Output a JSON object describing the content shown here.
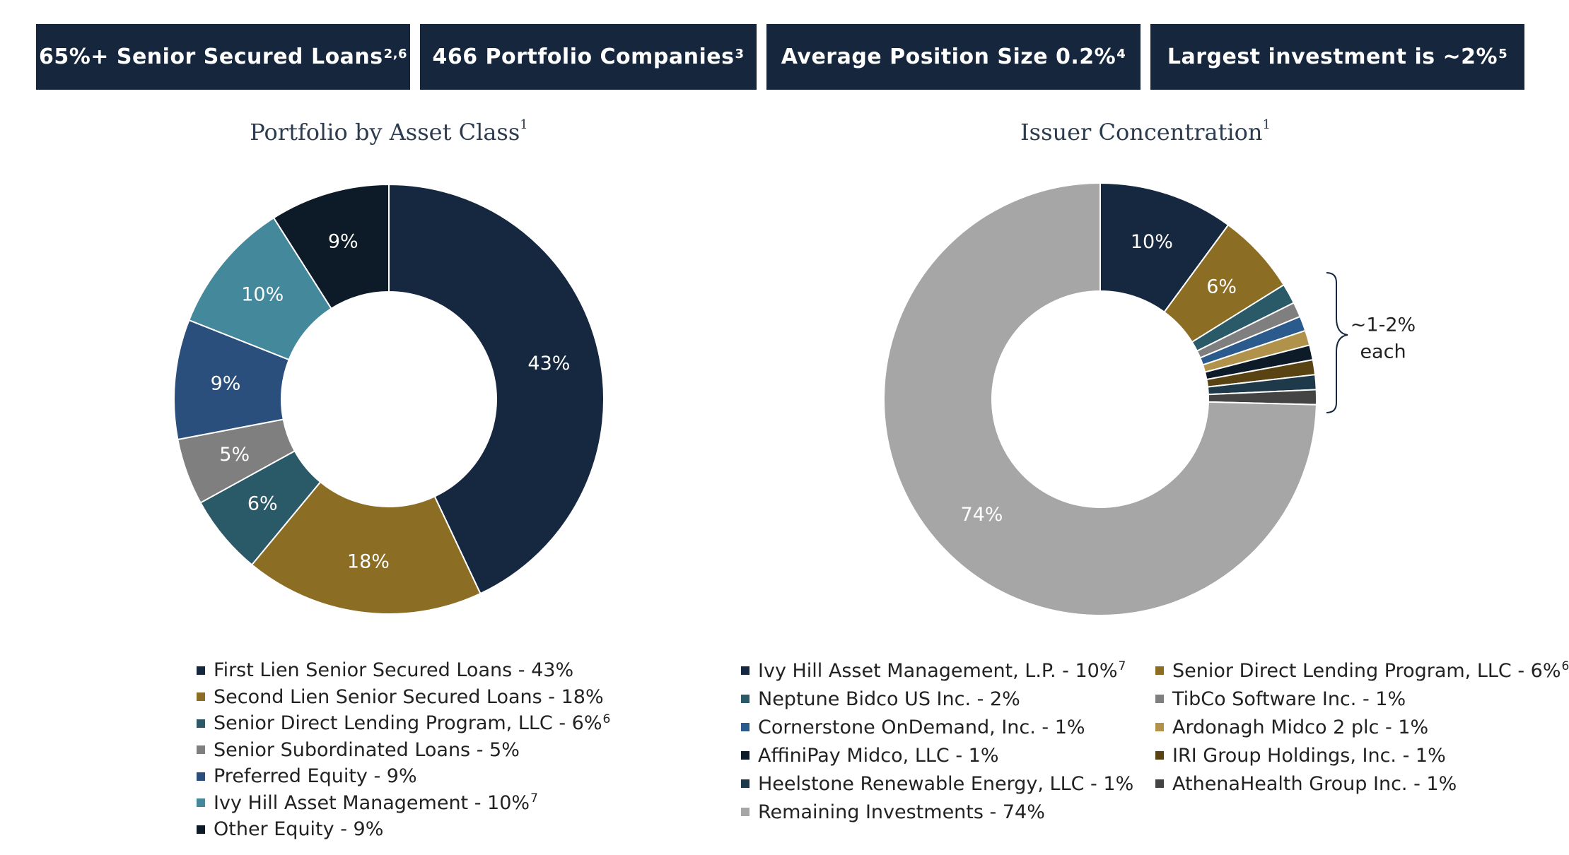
{
  "stats": [
    {
      "text": "65%+ Senior Secured Loans",
      "sup": "2,6"
    },
    {
      "text": "466 Portfolio Companies",
      "sup": "3"
    },
    {
      "text": "Average Position Size 0.2%",
      "sup": "4"
    },
    {
      "text": "Largest investment is ~2%",
      "sup": "5"
    }
  ],
  "brace_label_line1": "~1-2%",
  "brace_label_line2": "each",
  "chart_data": [
    {
      "type": "pie",
      "title": "Portfolio by Asset Class",
      "title_sup": "1",
      "slices": [
        {
          "name": "First Lien Senior Secured Loans",
          "value": 43,
          "label": "43%",
          "color": "#15283f",
          "legend": "First Lien Senior Secured Loans - 43%",
          "sup": ""
        },
        {
          "name": "Second Lien Senior Secured Loans",
          "value": 18,
          "label": "18%",
          "color": "#8c6d24",
          "legend": "Second Lien Senior Secured Loans - 18%",
          "sup": ""
        },
        {
          "name": "Senior Direct Lending Program, LLC",
          "value": 6,
          "label": "6%",
          "color": "#2a5a68",
          "legend": "Senior Direct Lending Program, LLC - 6%",
          "sup": "6"
        },
        {
          "name": "Senior Subordinated Loans",
          "value": 5,
          "label": "5%",
          "color": "#7f7f7f",
          "legend": "Senior Subordinated Loans - 5%",
          "sup": ""
        },
        {
          "name": "Preferred Equity",
          "value": 9,
          "label": "9%",
          "color": "#2b4f7c",
          "legend": "Preferred Equity - 9%",
          "sup": ""
        },
        {
          "name": "Ivy Hill Asset Management",
          "value": 10,
          "label": "10%",
          "color": "#43889b",
          "legend": "Ivy Hill Asset Management - 10%",
          "sup": "7"
        },
        {
          "name": "Other Equity",
          "value": 9,
          "label": "9%",
          "color": "#0d1a27",
          "legend": "Other Equity - 9%",
          "sup": ""
        }
      ]
    },
    {
      "type": "pie",
      "title": "Issuer Concentration",
      "title_sup": "1",
      "slices": [
        {
          "name": "Ivy Hill Asset Management, L.P.",
          "value": 10,
          "label": "10%",
          "color": "#15283f",
          "legend": "Ivy Hill Asset Management, L.P. - 10%",
          "sup": "7"
        },
        {
          "name": "Senior Direct Lending Program, LLC",
          "value": 6,
          "label": "6%",
          "color": "#8c6d24",
          "legend": "Senior Direct Lending Program, LLC - 6%",
          "sup": "6"
        },
        {
          "name": "Neptune Bidco US Inc.",
          "value": 1.5,
          "label": "",
          "color": "#2a5a68",
          "legend": "Neptune Bidco US Inc.  - 2%",
          "sup": ""
        },
        {
          "name": "TibCo Software Inc.",
          "value": 1.1,
          "label": "",
          "color": "#7f7f7f",
          "legend": "TibCo Software Inc. - 1%",
          "sup": ""
        },
        {
          "name": "Cornerstone OnDemand, Inc.",
          "value": 1.1,
          "label": "",
          "color": "#2b5a8c",
          "legend": "Cornerstone OnDemand, Inc. - 1%",
          "sup": ""
        },
        {
          "name": "Ardonagh Midco 2 plc",
          "value": 1.1,
          "label": "",
          "color": "#b0924a",
          "legend": "Ardonagh Midco 2 plc - 1%",
          "sup": ""
        },
        {
          "name": "AffiniPay Midco, LLC",
          "value": 1.1,
          "label": "",
          "color": "#0d1a27",
          "legend": "AffiniPay Midco, LLC  - 1%",
          "sup": ""
        },
        {
          "name": "IRI Group Holdings, Inc.",
          "value": 1.1,
          "label": "",
          "color": "#5a4312",
          "legend": "IRI Group Holdings, Inc. - 1%",
          "sup": ""
        },
        {
          "name": "Heelstone Renewable Energy, LLC",
          "value": 1.1,
          "label": "",
          "color": "#1e3a4a",
          "legend": "Heelstone Renewable Energy, LLC  - 1%",
          "sup": ""
        },
        {
          "name": "AthenaHealth Group Inc.",
          "value": 1.1,
          "label": "",
          "color": "#444444",
          "legend": "AthenaHealth Group Inc. - 1%",
          "sup": ""
        },
        {
          "name": "Remaining Investments",
          "value": 74,
          "label": "74%",
          "color": "#a6a6a6",
          "legend": "Remaining Investments - 74%",
          "sup": ""
        }
      ]
    }
  ]
}
